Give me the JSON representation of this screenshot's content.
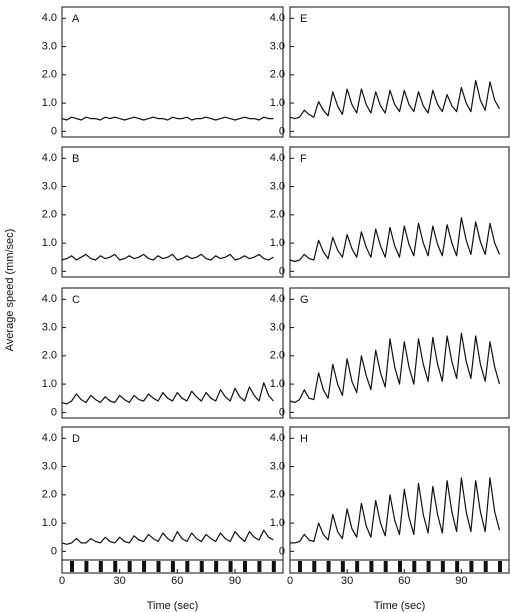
{
  "chart_data": [
    {
      "type": "line",
      "label": "A",
      "ylabel": "Average speed (mm/sec)",
      "x": [
        0,
        2.5,
        5,
        7.5,
        10,
        12.5,
        15,
        17.5,
        20,
        22.5,
        25,
        27.5,
        30,
        32.5,
        35,
        37.5,
        40,
        42.5,
        45,
        47.5,
        50,
        52.5,
        55,
        57.5,
        60,
        62.5,
        65,
        67.5,
        70,
        72.5,
        75,
        77.5,
        80,
        82.5,
        85,
        87.5,
        90,
        92.5,
        95,
        97.5,
        100,
        102.5,
        105,
        107.5,
        110
      ],
      "values": [
        0.45,
        0.4,
        0.5,
        0.45,
        0.4,
        0.5,
        0.45,
        0.45,
        0.4,
        0.5,
        0.45,
        0.5,
        0.45,
        0.4,
        0.45,
        0.5,
        0.45,
        0.4,
        0.45,
        0.5,
        0.45,
        0.45,
        0.4,
        0.5,
        0.45,
        0.45,
        0.5,
        0.4,
        0.45,
        0.45,
        0.5,
        0.45,
        0.4,
        0.45,
        0.5,
        0.45,
        0.4,
        0.45,
        0.5,
        0.45,
        0.45,
        0.4,
        0.5,
        0.45,
        0.45
      ],
      "xlim": [
        0,
        115
      ],
      "ylim": [
        -0.2,
        4.4
      ],
      "yticks": [
        0,
        {
          "value": 1,
          "label": "1.0"
        },
        {
          "value": 2,
          "label": "2.0"
        },
        {
          "value": 3,
          "label": "3.0"
        },
        {
          "value": 4,
          "label": "4.0"
        }
      ]
    },
    {
      "type": "line",
      "label": "B",
      "x": [
        0,
        2.5,
        5,
        7.5,
        10,
        12.5,
        15,
        17.5,
        20,
        22.5,
        25,
        27.5,
        30,
        32.5,
        35,
        37.5,
        40,
        42.5,
        45,
        47.5,
        50,
        52.5,
        55,
        57.5,
        60,
        62.5,
        65,
        67.5,
        70,
        72.5,
        75,
        77.5,
        80,
        82.5,
        85,
        87.5,
        90,
        92.5,
        95,
        97.5,
        100,
        102.5,
        105,
        107.5,
        110
      ],
      "values": [
        0.4,
        0.45,
        0.55,
        0.4,
        0.5,
        0.6,
        0.45,
        0.4,
        0.55,
        0.45,
        0.5,
        0.6,
        0.4,
        0.45,
        0.55,
        0.45,
        0.5,
        0.6,
        0.45,
        0.4,
        0.55,
        0.45,
        0.5,
        0.6,
        0.4,
        0.45,
        0.55,
        0.45,
        0.5,
        0.6,
        0.45,
        0.4,
        0.55,
        0.45,
        0.5,
        0.6,
        0.4,
        0.45,
        0.55,
        0.45,
        0.5,
        0.6,
        0.45,
        0.4,
        0.5
      ],
      "xlim": [
        0,
        115
      ],
      "ylim": [
        -0.2,
        4.4
      ],
      "yticks": [
        0,
        {
          "value": 1,
          "label": "1.0"
        },
        {
          "value": 2,
          "label": "2.0"
        },
        {
          "value": 3,
          "label": "3.0"
        },
        {
          "value": 4,
          "label": "4.0"
        }
      ]
    },
    {
      "type": "line",
      "label": "C",
      "x": [
        0,
        2.5,
        5,
        7.5,
        10,
        12.5,
        15,
        17.5,
        20,
        22.5,
        25,
        27.5,
        30,
        32.5,
        35,
        37.5,
        40,
        42.5,
        45,
        47.5,
        50,
        52.5,
        55,
        57.5,
        60,
        62.5,
        65,
        67.5,
        70,
        72.5,
        75,
        77.5,
        80,
        82.5,
        85,
        87.5,
        90,
        92.5,
        95,
        97.5,
        100,
        102.5,
        105,
        107.5,
        110
      ],
      "values": [
        0.35,
        0.3,
        0.4,
        0.65,
        0.45,
        0.35,
        0.6,
        0.45,
        0.35,
        0.55,
        0.4,
        0.35,
        0.6,
        0.45,
        0.35,
        0.6,
        0.45,
        0.4,
        0.65,
        0.5,
        0.4,
        0.7,
        0.5,
        0.4,
        0.7,
        0.5,
        0.4,
        0.75,
        0.55,
        0.4,
        0.7,
        0.5,
        0.4,
        0.8,
        0.55,
        0.4,
        0.85,
        0.55,
        0.4,
        0.9,
        0.6,
        0.4,
        1.05,
        0.6,
        0.4
      ],
      "xlim": [
        0,
        115
      ],
      "ylim": [
        -0.2,
        4.4
      ],
      "yticks": [
        0,
        {
          "value": 1,
          "label": "1.0"
        },
        {
          "value": 2,
          "label": "2.0"
        },
        {
          "value": 3,
          "label": "3.0"
        },
        {
          "value": 4,
          "label": "4.0"
        }
      ]
    },
    {
      "type": "line",
      "label": "D",
      "xlabel": "Time (sec)",
      "x": [
        0,
        2.5,
        5,
        7.5,
        10,
        12.5,
        15,
        17.5,
        20,
        22.5,
        25,
        27.5,
        30,
        32.5,
        35,
        37.5,
        40,
        42.5,
        45,
        47.5,
        50,
        52.5,
        55,
        57.5,
        60,
        62.5,
        65,
        67.5,
        70,
        72.5,
        75,
        77.5,
        80,
        82.5,
        85,
        87.5,
        90,
        92.5,
        95,
        97.5,
        100,
        102.5,
        105,
        107.5,
        110
      ],
      "values": [
        0.3,
        0.25,
        0.3,
        0.45,
        0.3,
        0.3,
        0.45,
        0.35,
        0.3,
        0.5,
        0.35,
        0.3,
        0.5,
        0.35,
        0.3,
        0.55,
        0.4,
        0.35,
        0.6,
        0.45,
        0.35,
        0.65,
        0.45,
        0.35,
        0.7,
        0.45,
        0.35,
        0.65,
        0.45,
        0.35,
        0.6,
        0.45,
        0.35,
        0.65,
        0.45,
        0.35,
        0.7,
        0.5,
        0.35,
        0.7,
        0.5,
        0.4,
        0.75,
        0.5,
        0.4
      ],
      "xlim": [
        0,
        115
      ],
      "ylim": [
        -0.2,
        4.4
      ],
      "xticks": [
        0,
        30,
        60,
        90
      ],
      "yticks": [
        0,
        {
          "value": 1,
          "label": "1.0"
        },
        {
          "value": 2,
          "label": "2.0"
        },
        {
          "value": 3,
          "label": "3.0"
        },
        {
          "value": 4,
          "label": "4.0"
        }
      ]
    },
    {
      "type": "line",
      "label": "E",
      "x": [
        0,
        2.5,
        5,
        7.5,
        10,
        12.5,
        15,
        17.5,
        20,
        22.5,
        25,
        27.5,
        30,
        32.5,
        35,
        37.5,
        40,
        42.5,
        45,
        47.5,
        50,
        52.5,
        55,
        57.5,
        60,
        62.5,
        65,
        67.5,
        70,
        72.5,
        75,
        77.5,
        80,
        82.5,
        85,
        87.5,
        90,
        92.5,
        95,
        97.5,
        100,
        102.5,
        105,
        107.5,
        110
      ],
      "values": [
        0.5,
        0.45,
        0.5,
        0.75,
        0.6,
        0.5,
        1.05,
        0.75,
        0.55,
        1.4,
        0.9,
        0.6,
        1.5,
        0.95,
        0.65,
        1.5,
        0.95,
        0.65,
        1.4,
        0.9,
        0.65,
        1.45,
        0.95,
        0.7,
        1.45,
        0.95,
        0.7,
        1.4,
        0.9,
        0.65,
        1.45,
        0.95,
        0.7,
        1.3,
        0.9,
        0.7,
        1.55,
        1.0,
        0.7,
        1.8,
        1.1,
        0.75,
        1.75,
        1.1,
        0.8
      ],
      "xlim": [
        0,
        115
      ],
      "ylim": [
        -0.2,
        4.4
      ],
      "yticks": [
        0,
        {
          "value": 1,
          "label": "1.0"
        },
        {
          "value": 2,
          "label": "2.0"
        },
        {
          "value": 3,
          "label": "3.0"
        },
        {
          "value": 4,
          "label": "4.0"
        }
      ]
    },
    {
      "type": "line",
      "label": "F",
      "x": [
        0,
        2.5,
        5,
        7.5,
        10,
        12.5,
        15,
        17.5,
        20,
        22.5,
        25,
        27.5,
        30,
        32.5,
        35,
        37.5,
        40,
        42.5,
        45,
        47.5,
        50,
        52.5,
        55,
        57.5,
        60,
        62.5,
        65,
        67.5,
        70,
        72.5,
        75,
        77.5,
        80,
        82.5,
        85,
        87.5,
        90,
        92.5,
        95,
        97.5,
        100,
        102.5,
        105,
        107.5,
        110
      ],
      "values": [
        0.4,
        0.35,
        0.4,
        0.6,
        0.45,
        0.4,
        1.1,
        0.7,
        0.45,
        1.2,
        0.75,
        0.5,
        1.3,
        0.8,
        0.5,
        1.4,
        0.85,
        0.5,
        1.5,
        0.9,
        0.5,
        1.55,
        0.9,
        0.5,
        1.6,
        0.95,
        0.55,
        1.7,
        1.0,
        0.55,
        1.6,
        0.95,
        0.55,
        1.65,
        1.0,
        0.55,
        1.9,
        1.1,
        0.6,
        1.75,
        1.05,
        0.6,
        1.7,
        1.0,
        0.6
      ],
      "xlim": [
        0,
        115
      ],
      "ylim": [
        -0.2,
        4.4
      ],
      "yticks": [
        0,
        {
          "value": 1,
          "label": "1.0"
        },
        {
          "value": 2,
          "label": "2.0"
        },
        {
          "value": 3,
          "label": "3.0"
        },
        {
          "value": 4,
          "label": "4.0"
        }
      ]
    },
    {
      "type": "line",
      "label": "G",
      "x": [
        0,
        2.5,
        5,
        7.5,
        10,
        12.5,
        15,
        17.5,
        20,
        22.5,
        25,
        27.5,
        30,
        32.5,
        35,
        37.5,
        40,
        42.5,
        45,
        47.5,
        50,
        52.5,
        55,
        57.5,
        60,
        62.5,
        65,
        67.5,
        70,
        72.5,
        75,
        77.5,
        80,
        82.5,
        85,
        87.5,
        90,
        92.5,
        95,
        97.5,
        100,
        102.5,
        105,
        107.5,
        110
      ],
      "values": [
        0.4,
        0.35,
        0.45,
        0.8,
        0.5,
        0.45,
        1.4,
        0.8,
        0.5,
        1.7,
        1.0,
        0.6,
        1.9,
        1.1,
        0.7,
        2.0,
        1.3,
        0.8,
        2.2,
        1.4,
        0.9,
        2.6,
        1.6,
        1.0,
        2.5,
        1.6,
        1.0,
        2.6,
        1.7,
        1.1,
        2.65,
        1.7,
        1.1,
        2.7,
        1.8,
        1.2,
        2.8,
        1.8,
        1.2,
        2.7,
        1.7,
        1.1,
        2.5,
        1.6,
        1.0
      ],
      "xlim": [
        0,
        115
      ],
      "ylim": [
        -0.2,
        4.4
      ],
      "yticks": [
        0,
        {
          "value": 1,
          "label": "1.0"
        },
        {
          "value": 2,
          "label": "2.0"
        },
        {
          "value": 3,
          "label": "3.0"
        },
        {
          "value": 4,
          "label": "4.0"
        }
      ]
    },
    {
      "type": "line",
      "label": "H",
      "xlabel": "Time (sec)",
      "x": [
        0,
        2.5,
        5,
        7.5,
        10,
        12.5,
        15,
        17.5,
        20,
        22.5,
        25,
        27.5,
        30,
        32.5,
        35,
        37.5,
        40,
        42.5,
        45,
        47.5,
        50,
        52.5,
        55,
        57.5,
        60,
        62.5,
        65,
        67.5,
        70,
        72.5,
        75,
        77.5,
        80,
        82.5,
        85,
        87.5,
        90,
        92.5,
        95,
        97.5,
        100,
        102.5,
        105,
        107.5,
        110
      ],
      "values": [
        0.3,
        0.3,
        0.35,
        0.6,
        0.4,
        0.35,
        1.0,
        0.6,
        0.4,
        1.3,
        0.7,
        0.45,
        1.5,
        0.8,
        0.5,
        1.7,
        0.9,
        0.5,
        1.8,
        1.0,
        0.55,
        2.0,
        1.1,
        0.6,
        2.2,
        1.2,
        0.6,
        2.4,
        1.3,
        0.65,
        2.3,
        1.3,
        0.65,
        2.5,
        1.4,
        0.7,
        2.6,
        1.4,
        0.7,
        2.5,
        1.4,
        0.7,
        2.6,
        1.4,
        0.75
      ],
      "xlim": [
        0,
        115
      ],
      "ylim": [
        -0.2,
        4.4
      ],
      "xticks": [
        0,
        30,
        60,
        90
      ],
      "yticks": [
        0,
        {
          "value": 1,
          "label": "1.0"
        },
        {
          "value": 2,
          "label": "2.0"
        },
        {
          "value": 3,
          "label": "3.0"
        },
        {
          "value": 4,
          "label": "4.0"
        }
      ]
    }
  ]
}
